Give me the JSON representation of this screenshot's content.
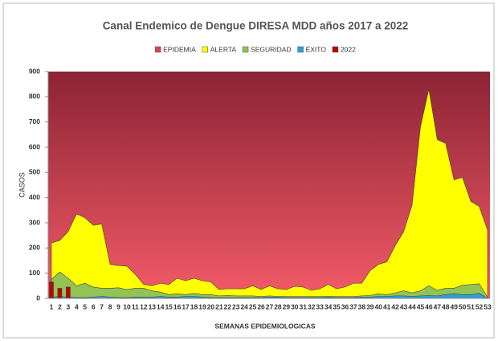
{
  "chart_data": {
    "type": "area",
    "title": "Canal Endemico de Dengue DIRESA MDD años 2017 a 2022",
    "x_label": "SEMANAS EPIDEMIOLOGICAS",
    "y_label": "CASOS",
    "categories": [
      "1",
      "2",
      "3",
      "4",
      "5",
      "6",
      "7",
      "8",
      "9",
      "10",
      "11",
      "12",
      "13",
      "14",
      "15",
      "16",
      "17",
      "18",
      "19",
      "20",
      "21",
      "22",
      "23",
      "24",
      "25",
      "26",
      "27",
      "28",
      "29",
      "30",
      "31",
      "32",
      "33",
      "34",
      "35",
      "36",
      "37",
      "38",
      "39",
      "40",
      "41",
      "42",
      "43",
      "44",
      "45",
      "46",
      "47",
      "48",
      "49",
      "50",
      "51",
      "52",
      "53"
    ],
    "series": [
      {
        "name": "EPIDEMIA",
        "color": "#d9435a"
      },
      {
        "name": "ALERTA",
        "color": "#ffff00",
        "values": [
          220,
          230,
          265,
          335,
          320,
          290,
          295,
          135,
          130,
          128,
          95,
          55,
          50,
          60,
          55,
          80,
          70,
          80,
          70,
          65,
          35,
          38,
          38,
          38,
          50,
          35,
          50,
          38,
          35,
          48,
          45,
          32,
          38,
          55,
          38,
          45,
          60,
          60,
          110,
          135,
          145,
          210,
          265,
          370,
          680,
          830,
          630,
          615,
          470,
          480,
          385,
          365,
          270
        ]
      },
      {
        "name": "SEGURIDAD",
        "color": "#92c353",
        "values": [
          75,
          105,
          80,
          50,
          60,
          45,
          40,
          40,
          42,
          35,
          40,
          40,
          30,
          25,
          15,
          18,
          15,
          20,
          15,
          15,
          10,
          12,
          10,
          10,
          10,
          8,
          10,
          8,
          8,
          8,
          8,
          8,
          8,
          8,
          8,
          8,
          8,
          10,
          12,
          18,
          15,
          22,
          30,
          22,
          30,
          50,
          32,
          40,
          40,
          52,
          55,
          58,
          5
        ]
      },
      {
        "name": "ÉXITO",
        "color": "#2f9fd8",
        "values": [
          5,
          8,
          5,
          3,
          3,
          5,
          8,
          5,
          3,
          3,
          5,
          5,
          5,
          8,
          5,
          5,
          8,
          8,
          5,
          3,
          3,
          3,
          3,
          3,
          3,
          3,
          5,
          5,
          3,
          3,
          3,
          3,
          3,
          5,
          3,
          3,
          3,
          5,
          5,
          8,
          8,
          10,
          10,
          8,
          10,
          12,
          10,
          15,
          18,
          15,
          15,
          20,
          0
        ]
      },
      {
        "name": "2022",
        "color": "#c00000",
        "values": [
          65,
          40,
          45,
          null,
          null,
          null,
          null,
          null,
          null,
          null,
          null,
          null,
          null,
          null,
          null,
          null,
          null,
          null,
          null,
          null,
          null,
          null,
          null,
          null,
          null,
          null,
          null,
          null,
          null,
          null,
          null,
          null,
          null,
          null,
          null,
          null,
          null,
          null,
          null,
          null,
          null,
          null,
          null,
          null,
          null,
          null,
          null,
          null,
          null,
          null,
          null,
          null,
          null
        ]
      }
    ],
    "ylim": [
      0,
      900
    ],
    "yticks": [
      0,
      100,
      200,
      300,
      400,
      500,
      600,
      700,
      800,
      900
    ],
    "grid": false
  }
}
